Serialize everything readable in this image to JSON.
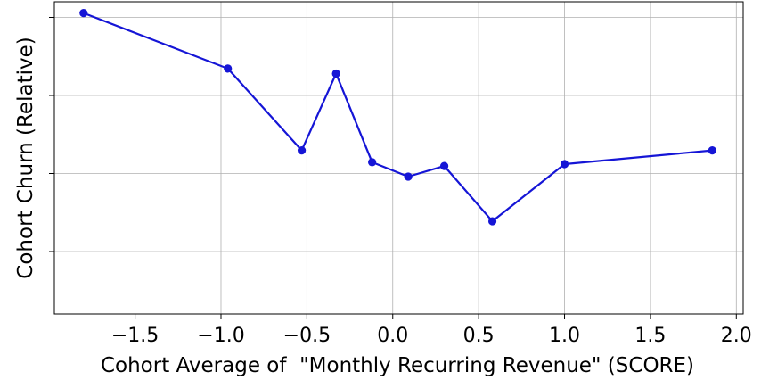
{
  "chart_data": {
    "type": "line",
    "title": "",
    "xlabel": "Cohort Average of  \"Monthly Recurring Revenue\" (SCORE)",
    "ylabel": "Cohort Churn (Relative)",
    "xlim": [
      -1.97,
      2.04
    ],
    "ylim": [
      0,
      1
    ],
    "x_ticks": [
      -1.5,
      -1.0,
      -0.5,
      0.0,
      0.5,
      1.0,
      1.5,
      2.0
    ],
    "x_tick_labels": [
      "−1.5",
      "−1.0",
      "−0.5",
      "0.0",
      "0.5",
      "1.0",
      "1.5",
      "2.0"
    ],
    "y_ticks": [
      0.2,
      0.45,
      0.7,
      0.95
    ],
    "grid": true,
    "color": "#1515d6",
    "series": [
      {
        "name": "cohort churn",
        "x": [
          -1.8,
          -0.96,
          -0.53,
          -0.33,
          -0.12,
          0.09,
          0.3,
          0.58,
          1.0,
          1.86
        ],
        "y": [
          0.964,
          0.786,
          0.524,
          0.77,
          0.486,
          0.44,
          0.474,
          0.297,
          0.48,
          0.524
        ]
      }
    ]
  }
}
